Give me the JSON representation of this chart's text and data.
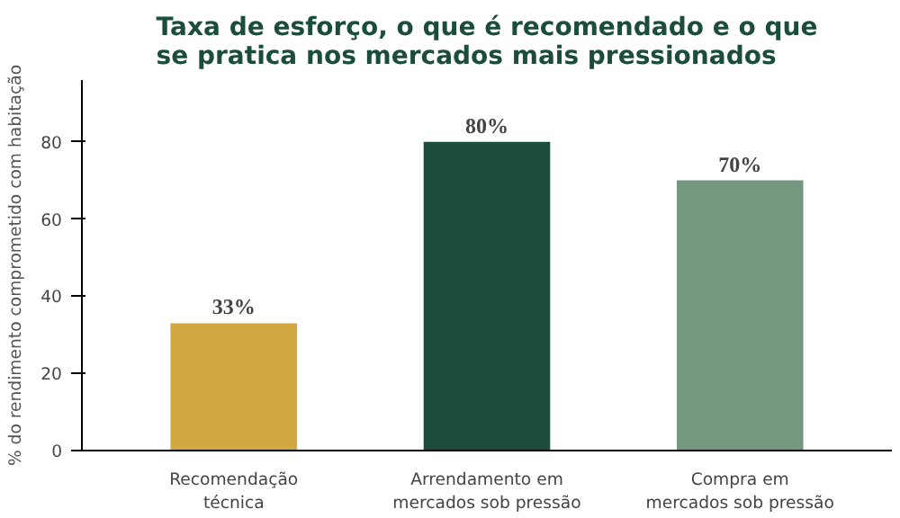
{
  "chart_data": {
    "type": "bar",
    "title": "Taxa de esforço, o que é recomendado e o que\nse pratica nos mercados mais pressionados",
    "ylabel": "% do rendimento comprometido com habitação",
    "categories": [
      "Recomendação\ntécnica",
      "Arrendamento em\nmercados sob pressão",
      "Compra em\nmercados sob pressão"
    ],
    "values": [
      33,
      80,
      70
    ],
    "colors": [
      "#d2a843",
      "#1b4d3a",
      "#74977f"
    ],
    "value_labels": [
      "33%",
      "80%",
      "70%"
    ],
    "ylim": [
      0,
      96
    ],
    "yticks": [
      0,
      20,
      40,
      60,
      80
    ],
    "grid": false
  }
}
